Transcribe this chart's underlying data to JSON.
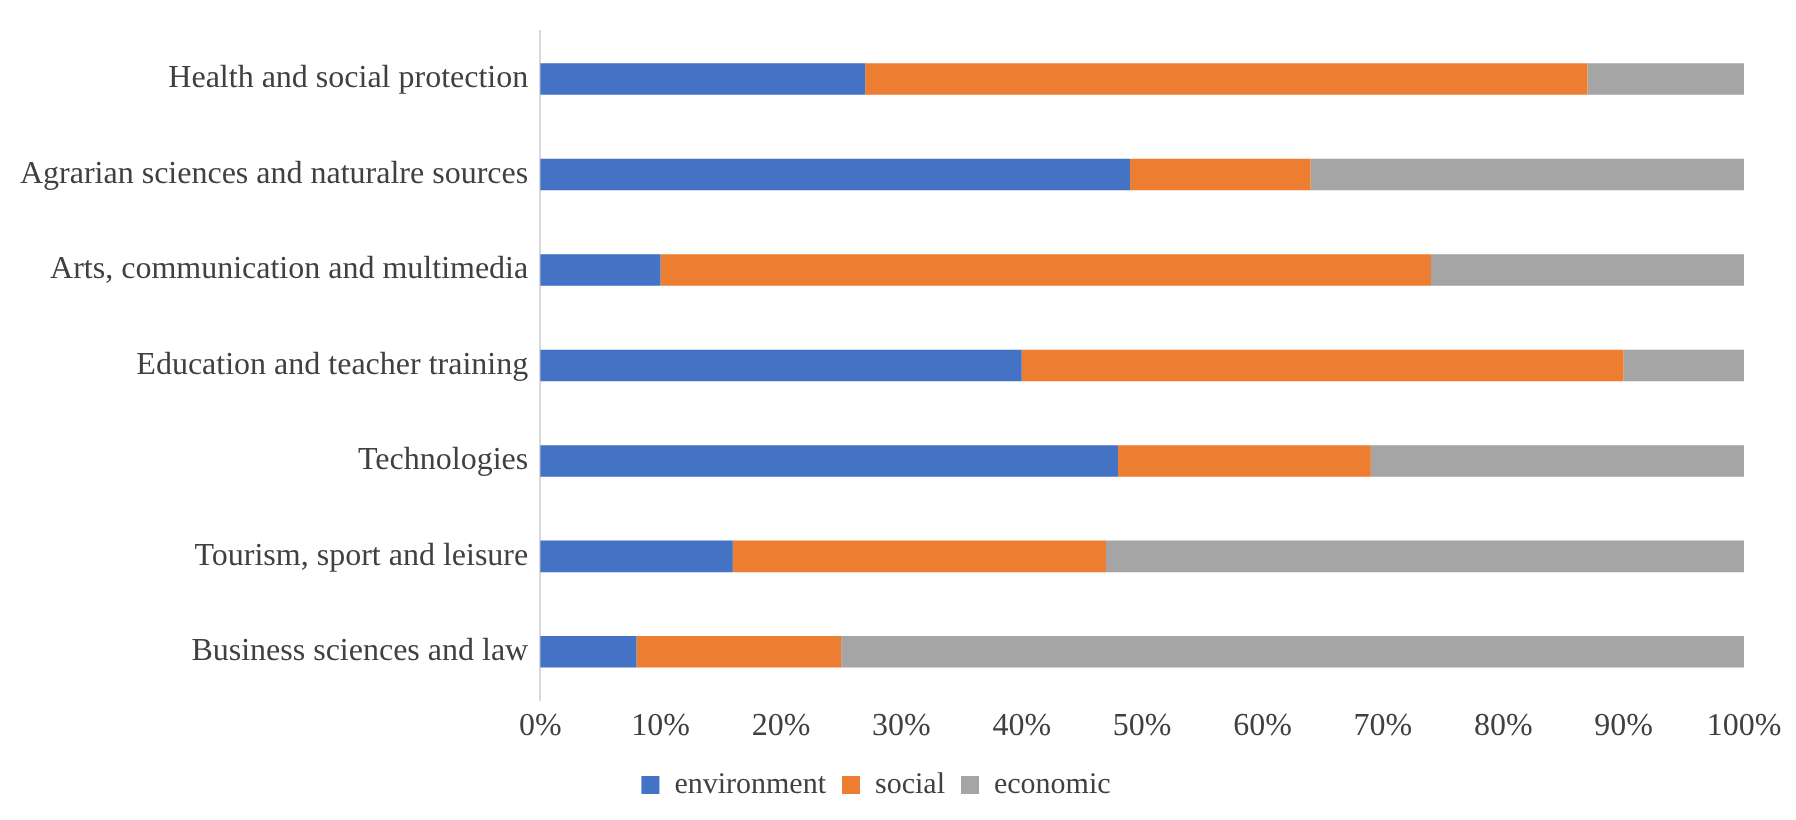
{
  "chart_data": {
    "type": "bar",
    "orientation": "horizontal",
    "stacked": true,
    "categories": [
      "Health and social protection",
      "Agrarian sciences and naturalre sources",
      "Arts, communication and multimedia",
      "Education and teacher training",
      "Technologies",
      "Tourism, sport and leisure",
      "Business sciences and law"
    ],
    "series": [
      {
        "name": "environment",
        "color": "#4472c4",
        "values": [
          27,
          49,
          10,
          40,
          48,
          16,
          8
        ]
      },
      {
        "name": "social",
        "color": "#ed7d31",
        "values": [
          60,
          15,
          64,
          50,
          21,
          31,
          17
        ]
      },
      {
        "name": "economic",
        "color": "#a5a5a5",
        "values": [
          13,
          36,
          26,
          10,
          31,
          53,
          75
        ]
      }
    ],
    "xlim": [
      0,
      100
    ],
    "xticks": [
      {
        "value": 0,
        "label": "0%"
      },
      {
        "value": 10,
        "label": "10%"
      },
      {
        "value": 20,
        "label": "20%"
      },
      {
        "value": 30,
        "label": "30%"
      },
      {
        "value": 40,
        "label": "40%"
      },
      {
        "value": 50,
        "label": "50%"
      },
      {
        "value": 60,
        "label": "60%"
      },
      {
        "value": 70,
        "label": "70%"
      },
      {
        "value": 80,
        "label": "80%"
      },
      {
        "value": 90,
        "label": "90%"
      },
      {
        "value": 100,
        "label": "100%"
      }
    ],
    "grid": false,
    "legend": "bottom"
  }
}
